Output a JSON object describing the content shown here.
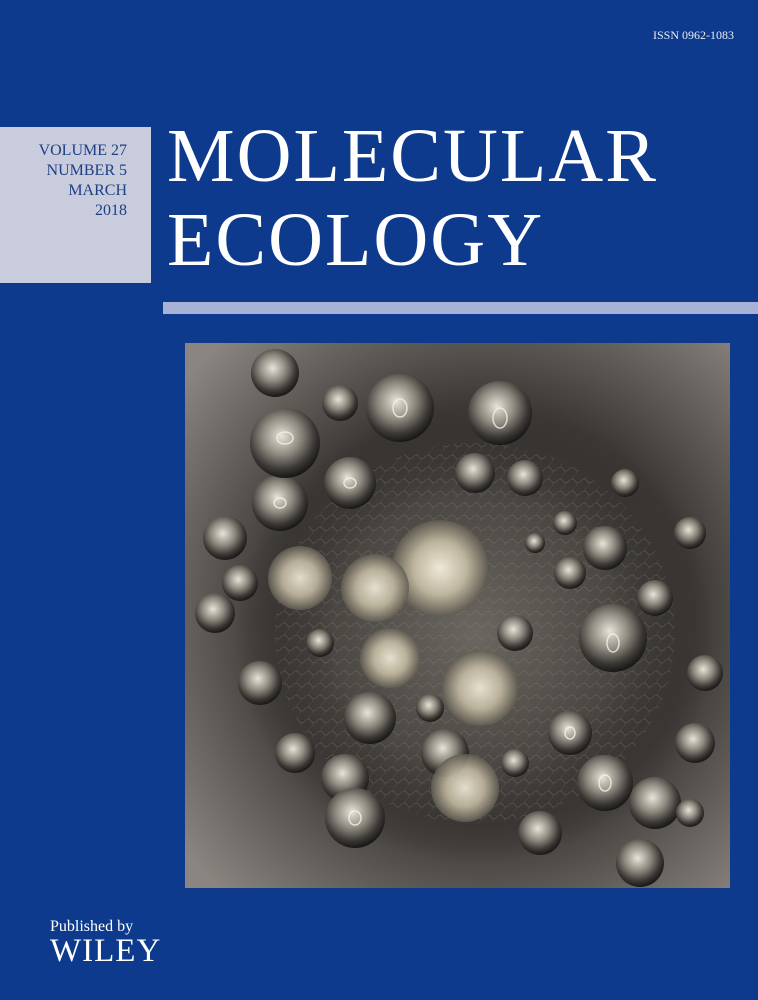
{
  "issn": "ISSN 0962-1083",
  "issue": {
    "volume": "VOLUME 27",
    "number": "NUMBER 5",
    "month": "MARCH",
    "year": "2018"
  },
  "title": {
    "line1": "MOLECULAR",
    "line2": "ECOLOGY"
  },
  "publisher": {
    "published_by": "Published by",
    "name": "WILEY"
  },
  "colors": {
    "background": "#0d3a8c",
    "issue_box": "#c9ccdc",
    "rule": "#a8b2d6",
    "title_text": "#ffffff"
  }
}
